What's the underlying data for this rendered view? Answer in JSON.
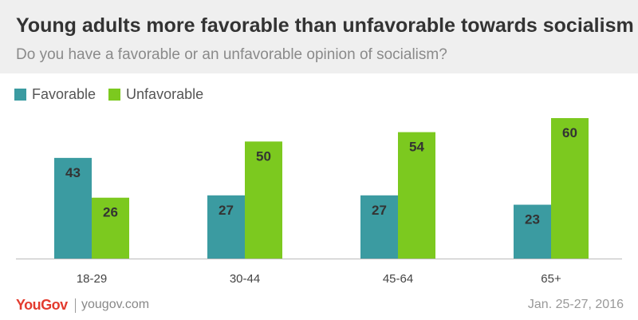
{
  "header": {
    "title": "Young adults more favorable than unfavorable towards socialism",
    "subtitle": "Do you have a favorable or an unfavorable opinion of socialism?"
  },
  "colors": {
    "favorable": "#3b9ba1",
    "unfavorable": "#7cc91f",
    "header_bg": "#efefef",
    "logo": "#e33b2e"
  },
  "chart_data": {
    "type": "bar",
    "categories": [
      "18-29",
      "30-44",
      "45-64",
      "65+"
    ],
    "series": [
      {
        "name": "Favorable",
        "values": [
          43,
          27,
          27,
          23
        ]
      },
      {
        "name": "Unfavorable",
        "values": [
          26,
          50,
          54,
          60
        ]
      }
    ],
    "title": "Young adults more favorable than unfavorable towards socialism",
    "subtitle": "Do you have a favorable or an unfavorable opinion of socialism?",
    "xlabel": "",
    "ylabel": "",
    "ylim": [
      0,
      60
    ],
    "grid": false,
    "legend": "top-left",
    "data_labels": true
  },
  "footer": {
    "logo": "YouGov",
    "website": "yougov.com",
    "date": "Jan. 25-27, 2016"
  }
}
